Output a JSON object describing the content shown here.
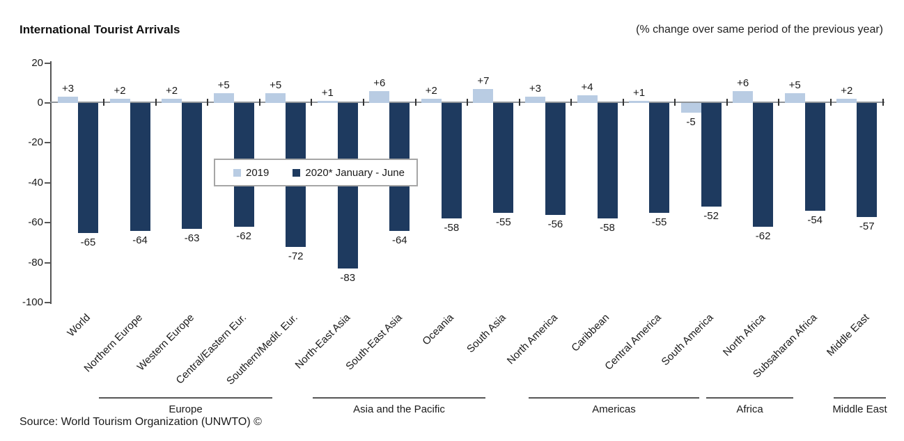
{
  "header": {
    "title": "International Tourist Arrivals",
    "subtitle": "(% change over same period of the previous year)"
  },
  "chart_data": {
    "type": "bar",
    "title": "International Tourist Arrivals",
    "subtitle": "(% change over same period of the previous year)",
    "categories": [
      "World",
      "Northern Europe",
      "Western Europe",
      "Central/Eastern Eur.",
      "Southern/Medit. Eur.",
      "North-East Asia",
      "South-East Asia",
      "Oceania",
      "South Asia",
      "North America",
      "Caribbean",
      "Central America",
      "South America",
      "North Africa",
      "Subsaharan Africa",
      "Middle East"
    ],
    "series": [
      {
        "name": "2019",
        "color": "#B9CCE3",
        "values": [
          3,
          2,
          2,
          5,
          5,
          1,
          6,
          2,
          7,
          3,
          4,
          1,
          -5,
          6,
          5,
          2
        ]
      },
      {
        "name": "2020* January - June",
        "color": "#1E3A5F",
        "values": [
          -65,
          -64,
          -63,
          -62,
          -72,
          -83,
          -64,
          -58,
          -55,
          -56,
          -58,
          -55,
          -52,
          -62,
          -54,
          -57
        ]
      }
    ],
    "y_ticks": [
      20,
      0,
      -20,
      -40,
      -60,
      -80,
      -100
    ],
    "ylim": [
      -100,
      20
    ],
    "grid": false,
    "legend_position": "inside-upper-left",
    "region_groups": [
      {
        "label": "Europe",
        "from": 1,
        "to": 4
      },
      {
        "label": "Asia and the Pacific",
        "from": 5,
        "to": 8
      },
      {
        "label": "Americas",
        "from": 9,
        "to": 12
      },
      {
        "label": "Africa",
        "from": 13,
        "to": 14
      },
      {
        "label": "Middle East",
        "from": 15,
        "to": 15
      }
    ]
  },
  "footer": {
    "source": "Source: World Tourism Organization (UNWTO) ©"
  }
}
